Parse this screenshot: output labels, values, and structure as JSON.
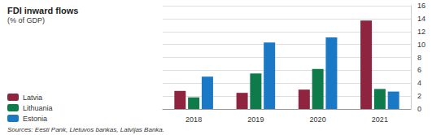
{
  "chart_data": {
    "type": "bar",
    "title": "FDI inward flows",
    "subtitle": "(% of GDP)",
    "source": "Sources: Eesti Pank, Lietuvos bankas, Latvijas Banka.",
    "categories": [
      "2018",
      "2019",
      "2020",
      "2021"
    ],
    "series": [
      {
        "name": "Latvia",
        "color": "#8e2440",
        "values": [
          2.8,
          2.5,
          3.0,
          13.7
        ]
      },
      {
        "name": "Lithuania",
        "color": "#0f7a4a",
        "values": [
          1.8,
          5.5,
          6.2,
          3.1
        ]
      },
      {
        "name": "Estonia",
        "color": "#1b78c4",
        "values": [
          5.0,
          10.3,
          11.1,
          2.7
        ]
      }
    ],
    "ylim": [
      0,
      16
    ],
    "yticks": [
      0,
      2,
      4,
      6,
      8,
      10,
      12,
      14,
      16
    ],
    "grid": true,
    "legend": "left"
  }
}
